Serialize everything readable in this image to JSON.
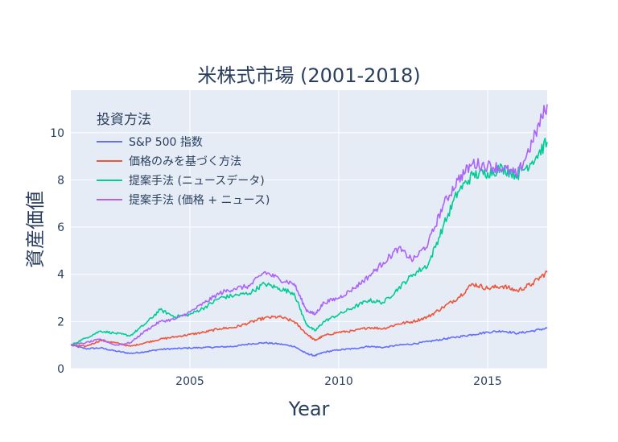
{
  "chart_data": {
    "type": "line",
    "title": "米株式市場 (2001-2018)",
    "xlabel": "Year",
    "ylabel": "資産価値",
    "xlim": [
      2001.0,
      2017.0
    ],
    "ylim": [
      0,
      11.8
    ],
    "xticks": [
      2005,
      2010,
      2015
    ],
    "yticks": [
      0,
      2,
      4,
      6,
      8,
      10
    ],
    "grid": true,
    "legend": {
      "title": "投資方法",
      "position": "top-left"
    },
    "colors": [
      "#636efa",
      "#ef553b",
      "#00cc96",
      "#ab63fa"
    ],
    "series": [
      {
        "name": "S&P 500 指数",
        "x": [
          2001.0,
          2001.5,
          2002.0,
          2002.5,
          2003.0,
          2003.5,
          2004.0,
          2004.5,
          2005.0,
          2005.5,
          2006.0,
          2006.5,
          2007.0,
          2007.5,
          2008.0,
          2008.5,
          2008.9,
          2009.2,
          2009.5,
          2010.0,
          2010.5,
          2011.0,
          2011.5,
          2012.0,
          2012.5,
          2013.0,
          2013.5,
          2014.0,
          2014.5,
          2015.0,
          2015.5,
          2016.0,
          2016.5,
          2017.0
        ],
        "values": [
          1.0,
          0.85,
          0.88,
          0.75,
          0.65,
          0.72,
          0.82,
          0.85,
          0.88,
          0.9,
          0.92,
          0.95,
          1.05,
          1.1,
          1.05,
          0.95,
          0.65,
          0.55,
          0.7,
          0.8,
          0.85,
          0.95,
          0.9,
          1.0,
          1.05,
          1.15,
          1.25,
          1.35,
          1.45,
          1.55,
          1.6,
          1.5,
          1.6,
          1.72
        ]
      },
      {
        "name": "価格のみを基づく方法",
        "x": [
          2001.0,
          2001.5,
          2002.0,
          2002.5,
          2003.0,
          2003.5,
          2004.0,
          2004.5,
          2005.0,
          2005.5,
          2006.0,
          2006.5,
          2007.0,
          2007.5,
          2008.0,
          2008.5,
          2008.9,
          2009.2,
          2009.5,
          2010.0,
          2010.5,
          2011.0,
          2011.5,
          2012.0,
          2012.5,
          2013.0,
          2013.5,
          2014.0,
          2014.5,
          2015.0,
          2015.5,
          2016.0,
          2016.5,
          2017.0
        ],
        "values": [
          1.0,
          0.95,
          1.2,
          1.1,
          0.95,
          1.1,
          1.25,
          1.35,
          1.45,
          1.55,
          1.7,
          1.75,
          1.95,
          2.15,
          2.2,
          2.0,
          1.5,
          1.2,
          1.4,
          1.55,
          1.6,
          1.75,
          1.7,
          1.9,
          2.0,
          2.2,
          2.6,
          3.0,
          3.6,
          3.4,
          3.5,
          3.3,
          3.6,
          4.1
        ]
      },
      {
        "name": "提案手法 (ニュースデータ)",
        "x": [
          2001.0,
          2001.5,
          2002.0,
          2002.5,
          2003.0,
          2003.5,
          2004.0,
          2004.5,
          2005.0,
          2005.5,
          2006.0,
          2006.5,
          2007.0,
          2007.5,
          2008.0,
          2008.5,
          2008.9,
          2009.2,
          2009.5,
          2010.0,
          2010.5,
          2011.0,
          2011.5,
          2012.0,
          2012.5,
          2013.0,
          2013.5,
          2014.0,
          2014.5,
          2015.0,
          2015.5,
          2016.0,
          2016.5,
          2017.0
        ],
        "values": [
          1.0,
          1.3,
          1.6,
          1.5,
          1.4,
          1.9,
          2.5,
          2.2,
          2.3,
          2.6,
          3.0,
          3.1,
          3.2,
          3.6,
          3.4,
          3.2,
          1.9,
          1.6,
          2.0,
          2.3,
          2.6,
          2.9,
          2.8,
          3.4,
          4.0,
          4.4,
          6.0,
          7.5,
          8.2,
          8.3,
          8.5,
          8.2,
          8.8,
          9.6
        ]
      },
      {
        "name": "提案手法 (価格 + ニュース)",
        "x": [
          2001.0,
          2001.5,
          2002.0,
          2002.5,
          2003.0,
          2003.5,
          2004.0,
          2004.5,
          2005.0,
          2005.5,
          2006.0,
          2006.5,
          2007.0,
          2007.5,
          2008.0,
          2008.5,
          2008.9,
          2009.2,
          2009.5,
          2010.0,
          2010.5,
          2011.0,
          2011.5,
          2012.0,
          2012.5,
          2013.0,
          2013.5,
          2014.0,
          2014.5,
          2015.0,
          2015.5,
          2016.0,
          2016.5,
          2017.0
        ],
        "values": [
          1.0,
          1.1,
          1.25,
          1.0,
          1.1,
          1.6,
          2.0,
          2.1,
          2.4,
          2.8,
          3.2,
          3.4,
          3.5,
          4.1,
          3.8,
          3.6,
          2.5,
          2.3,
          2.8,
          3.0,
          3.4,
          3.9,
          4.5,
          5.1,
          4.6,
          5.3,
          6.9,
          8.0,
          8.7,
          8.6,
          8.5,
          8.2,
          9.6,
          11.2
        ]
      }
    ]
  }
}
